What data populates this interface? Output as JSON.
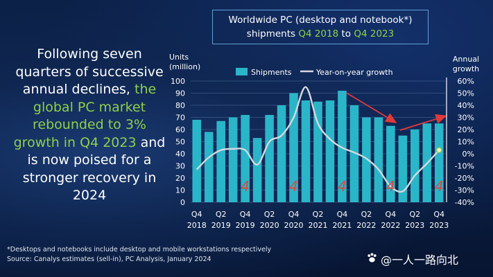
{
  "title": {
    "line1": "Worldwide PC (desktop and notebook*)",
    "line2_pre": "shipments ",
    "from": "Q4 2018",
    "mid": " to ",
    "to": "Q4 2023"
  },
  "headline": {
    "part1": "Following seven quarters of successive annual declines, ",
    "highlight": "the global PC market rebounded to 3% growth in Q4 2023",
    "part2": " and is now poised for a stronger recovery in 2024"
  },
  "footnote": {
    "line1": "*Desktops and notebooks include desktop and mobile workstations respectively",
    "line2": "Source: Canalys estimates (sell-in), PC Analysis, January 2024"
  },
  "watermark": "@一人一路向北",
  "colors": {
    "bar": "#2bb5c9",
    "line": "#d6d9de",
    "arrow": "#e23a3a",
    "marker": "#e0453f",
    "highlight": "#8ed04a"
  },
  "chart_data": {
    "type": "bar",
    "left_axis_label": [
      "Units",
      "(million)"
    ],
    "right_axis_label": [
      "Annual",
      "growth"
    ],
    "left_ticks": [
      "0",
      "10",
      "20",
      "30",
      "40",
      "50",
      "60",
      "70",
      "80",
      "90",
      "100"
    ],
    "right_ticks": [
      "60%",
      "50%",
      "40%",
      "30%",
      "20%",
      "10%",
      "0%",
      "-10%",
      "-20%",
      "-30%",
      "-40%"
    ],
    "ylim": [
      0,
      100
    ],
    "y2lim": [
      -40,
      60
    ],
    "x_labels": [
      {
        "q": "Q4",
        "y": "2018"
      },
      {
        "q": "Q2",
        "y": "2019"
      },
      {
        "q": "Q4",
        "y": "2019"
      },
      {
        "q": "Q2",
        "y": "2020"
      },
      {
        "q": "Q4",
        "y": "2020"
      },
      {
        "q": "Q2",
        "y": "2021"
      },
      {
        "q": "Q4",
        "y": "2021"
      },
      {
        "q": "Q2",
        "y": "2022"
      },
      {
        "q": "Q4",
        "y": "2022"
      },
      {
        "q": "Q2",
        "y": "2023"
      },
      {
        "q": "Q4",
        "y": "2023"
      }
    ],
    "series": [
      {
        "name": "Shipments",
        "kind": "bar",
        "values": [
          68,
          58,
          67,
          70,
          72,
          53,
          72,
          80,
          90,
          84,
          83,
          84,
          92,
          80,
          70,
          70,
          63,
          55,
          60,
          65,
          65
        ]
      },
      {
        "name": "Year-on-year growth",
        "kind": "line",
        "values": [
          -13,
          -3,
          3,
          4,
          3,
          -9,
          10,
          15,
          30,
          55,
          25,
          12,
          5,
          1,
          -4,
          -13,
          -27,
          -31,
          -18,
          -8,
          3
        ]
      }
    ],
    "marker_quarters": [
      4,
      8,
      12,
      16,
      20
    ],
    "marker_text": "4",
    "grid": true,
    "legend_position": "top"
  }
}
